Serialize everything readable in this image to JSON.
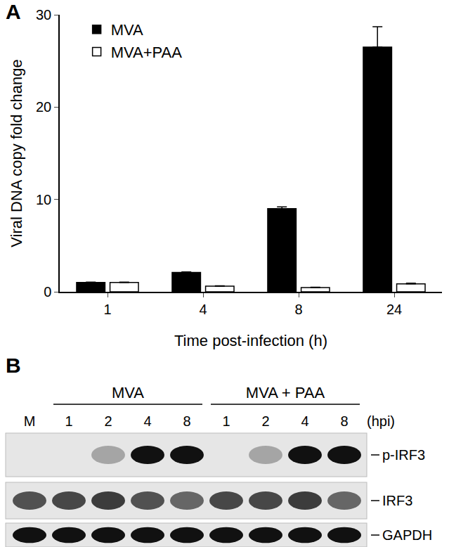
{
  "chart_data": {
    "type": "bar",
    "panel": "A",
    "x_label": "Time post-infection (h)",
    "y_label": "Viral DNA copy fold change",
    "categories": [
      "1",
      "4",
      "8",
      "24"
    ],
    "series": [
      {
        "name": "MVA",
        "color": "#000000",
        "values": [
          1.0,
          2.1,
          9.0,
          26.5
        ],
        "errors": [
          0.05,
          0.05,
          0.2,
          2.2
        ]
      },
      {
        "name": "MVA+PAA",
        "color": "#ffffff",
        "values": [
          1.0,
          0.6,
          0.45,
          0.85
        ],
        "errors": [
          0.05,
          0.05,
          0.05,
          0.08
        ]
      }
    ],
    "ylim": [
      0,
      30
    ],
    "yticks": [
      0,
      10,
      20,
      30
    ],
    "grid": false,
    "legend": "top left"
  },
  "blot": {
    "panel": "B",
    "lanes": [
      "M",
      "1",
      "2",
      "4",
      "8",
      "1",
      "2",
      "4",
      "8"
    ],
    "lane_unit": "(hpi)",
    "lane_groups": [
      {
        "label": "MVA",
        "lanes": [
          1,
          2,
          3,
          4
        ]
      },
      {
        "label": "MVA + PAA",
        "lanes": [
          5,
          6,
          7,
          8
        ]
      }
    ],
    "rows": [
      {
        "label": "p-IRF3",
        "intensity": [
          0,
          0,
          0.3,
          1,
          1,
          0,
          0.3,
          1,
          1
        ]
      },
      {
        "label": "IRF3",
        "intensity": [
          0.7,
          0.75,
          0.8,
          0.7,
          0.6,
          0.75,
          0.75,
          0.8,
          0.6
        ]
      },
      {
        "label": "GAPDH",
        "intensity": [
          1,
          1,
          1,
          1,
          1,
          1,
          1,
          1,
          1
        ]
      }
    ]
  }
}
